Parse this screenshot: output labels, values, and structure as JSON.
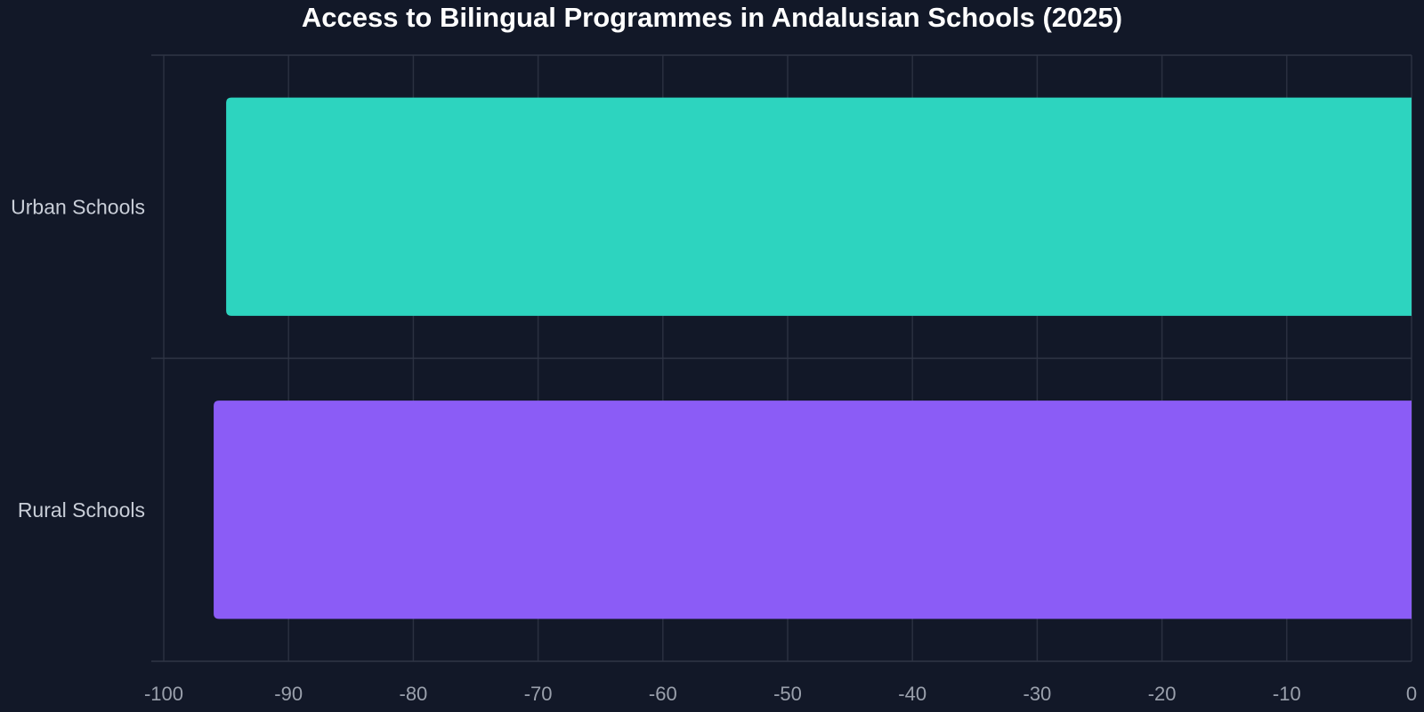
{
  "chart_data": {
    "type": "bar",
    "orientation": "horizontal",
    "title": "Access to Bilingual Programmes in Andalusian Schools (2025)",
    "xlabel": "",
    "ylabel": "",
    "categories": [
      "Urban Schools",
      "Rural Schools"
    ],
    "values": [
      -95,
      -96
    ],
    "colors": [
      "#2dd4bf",
      "#8b5cf6"
    ],
    "xlim": [
      -100,
      0
    ],
    "xticks": [
      -100,
      -90,
      -80,
      -70,
      -60,
      -50,
      -40,
      -30,
      -20,
      -10,
      0
    ],
    "grid": true,
    "legend": "none"
  },
  "theme": {
    "background": "#121828",
    "grid": "#2a3040",
    "title_color": "#ffffff",
    "tick_color": "#9aa0ac",
    "category_color": "#c9ced8"
  }
}
